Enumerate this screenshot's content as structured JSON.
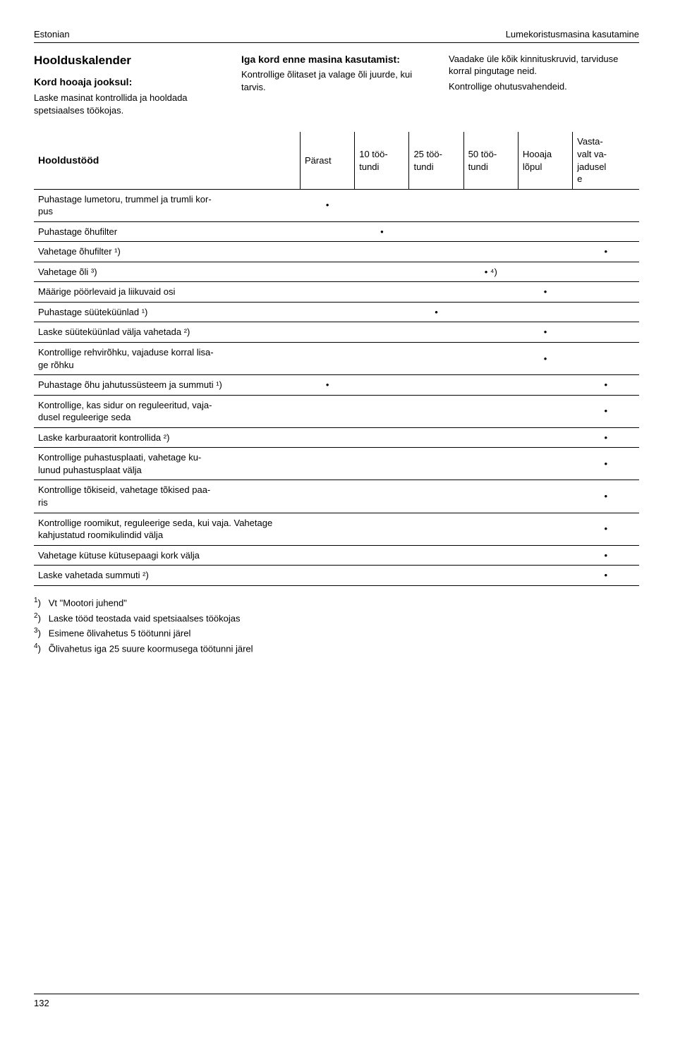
{
  "header": {
    "left": "Estonian",
    "right": "Lumekoristusmasina kasutamine"
  },
  "columns": {
    "c1": {
      "title": "Hoolduskalender",
      "sub": "Kord hooaja jooksul:",
      "body": "Laske masinat kontrollida ja hooldada spetsiaalses töökojas."
    },
    "c2": {
      "sub": "Iga kord enne masina kasutamist:",
      "body": "Kontrollige õlitaset ja valage õli juurde, kui tarvis."
    },
    "c3": {
      "l1": "Vaadake üle kõik kinnituskruvid, tarviduse korral pingutage neid.",
      "l2": "Kontrollige ohutusvahendeid."
    }
  },
  "table": {
    "rowhead": "Hooldustööd",
    "cols": [
      "Pärast",
      "10 töö-\ntundi",
      "25 töö-\ntundi",
      "50 töö-\ntundi",
      "Hooaja lõpul",
      "Vasta-\nvalt va-\njadusel\ne"
    ],
    "rows": [
      {
        "label": "Puhastage lumetoru, trummel ja trumli kor-\npus",
        "marks": [
          "•",
          "",
          "",
          "",
          "",
          ""
        ]
      },
      {
        "label": "Puhastage õhufilter",
        "marks": [
          "",
          "•",
          "",
          "",
          "",
          ""
        ]
      },
      {
        "label": "Vahetage õhufilter ¹)",
        "marks": [
          "",
          "",
          "",
          "",
          "",
          "•"
        ]
      },
      {
        "label": "Vahetage õli ³)",
        "marks": [
          "",
          "",
          "",
          "• ⁴)",
          "",
          ""
        ]
      },
      {
        "label": "Määrige pöörlevaid ja liikuvaid osi",
        "marks": [
          "",
          "",
          "",
          "",
          "•",
          ""
        ]
      },
      {
        "label": "Puhastage süüteküünlad ¹)",
        "marks": [
          "",
          "",
          "•",
          "",
          "",
          ""
        ]
      },
      {
        "label": "Laske süüteküünlad välja vahetada ²)",
        "marks": [
          "",
          "",
          "",
          "",
          "•",
          ""
        ]
      },
      {
        "label": "Kontrollige rehvirõhku, vajaduse korral lisa-\nge rõhku",
        "marks": [
          "",
          "",
          "",
          "",
          "•",
          ""
        ]
      },
      {
        "label": "Puhastage õhu jahutussüsteem ja summuti ¹)",
        "marks": [
          "•",
          "",
          "",
          "",
          "",
          "•"
        ]
      },
      {
        "label": "Kontrollige, kas sidur on reguleeritud, vaja-\ndusel reguleerige seda",
        "marks": [
          "",
          "",
          "",
          "",
          "",
          "•"
        ]
      },
      {
        "label": "Laske karburaatorit kontrollida ²)",
        "marks": [
          "",
          "",
          "",
          "",
          "",
          "•"
        ]
      },
      {
        "label": "Kontrollige puhastusplaati, vahetage ku-\nlunud puhastusplaat välja",
        "marks": [
          "",
          "",
          "",
          "",
          "",
          "•"
        ]
      },
      {
        "label": "Kontrollige tõkiseid, vahetage tõkised paa-\nris",
        "marks": [
          "",
          "",
          "",
          "",
          "",
          "•"
        ]
      },
      {
        "label": "Kontrollige roomikut, reguleerige seda, kui vaja. Vahetage kahjustatud roomikulindid välja",
        "marks": [
          "",
          "",
          "",
          "",
          "",
          "•"
        ]
      },
      {
        "label": "Vahetage kütuse kütusepaagi kork välja",
        "marks": [
          "",
          "",
          "",
          "",
          "",
          "•"
        ]
      },
      {
        "label": "Laske vahetada summuti ²)",
        "marks": [
          "",
          "",
          "",
          "",
          "",
          "•"
        ]
      }
    ]
  },
  "footnotes": {
    "f1": "Vt \"Mootori juhend\"",
    "f2": "Laske tööd teostada vaid spetsiaalses töökojas",
    "f3": "Esimene õlivahetus 5 töötunni järel",
    "f4": "Õlivahetus iga 25 suure koormusega töötunni järel"
  },
  "pagenum": "132"
}
